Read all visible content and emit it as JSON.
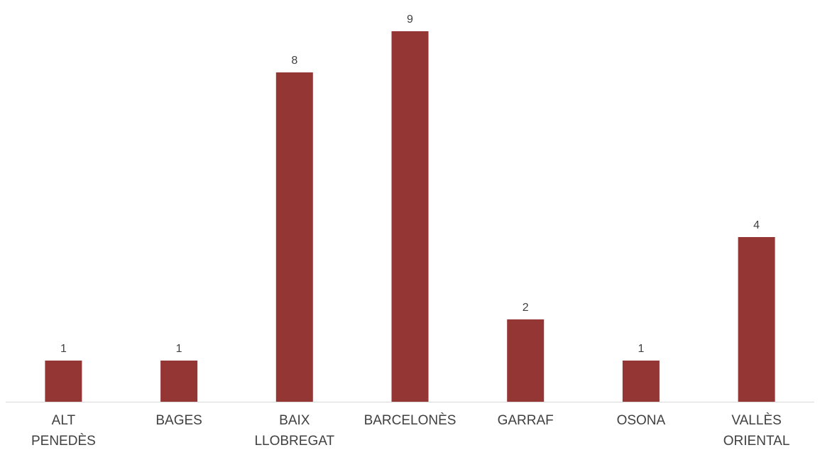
{
  "chart_data": {
    "type": "bar",
    "categories": [
      [
        "ALT",
        "PENEDÈS"
      ],
      [
        "BAGES"
      ],
      [
        "BAIX",
        "LLOBREGAT"
      ],
      [
        "BARCELONÈS"
      ],
      [
        "GARRAF"
      ],
      [
        "OSONA"
      ],
      [
        "VALLÈS",
        "ORIENTAL"
      ]
    ],
    "values": [
      1,
      1,
      8,
      9,
      2,
      1,
      4
    ],
    "data_labels": [
      "1",
      "1",
      "8",
      "9",
      "2",
      "1",
      "4"
    ],
    "bar_color": "#943634",
    "axis_color": "#d9d9d9",
    "ylim": [
      0,
      9
    ],
    "grid": false,
    "legend": "none"
  }
}
